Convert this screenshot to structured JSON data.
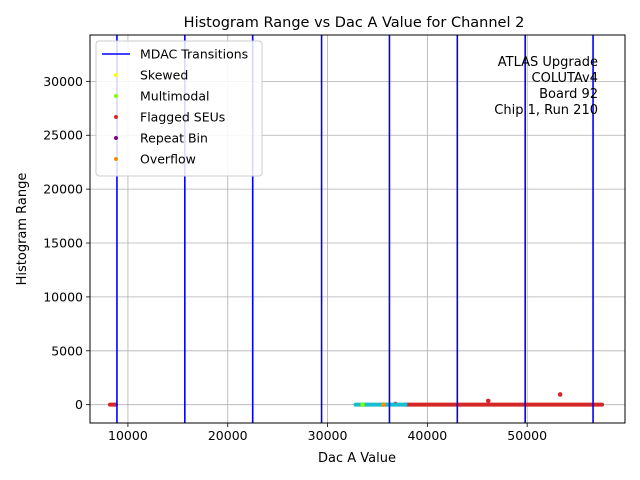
{
  "chart_data": {
    "type": "scatter",
    "title": "Histogram Range vs Dac A Value for Channel 2",
    "xlabel": "Dac A Value",
    "ylabel": "Histogram Range",
    "xlim": [
      6200,
      59800
    ],
    "ylim": [
      -1700,
      34300
    ],
    "xticks": [
      10000,
      20000,
      30000,
      40000,
      50000
    ],
    "yticks": [
      0,
      5000,
      10000,
      15000,
      20000,
      25000,
      30000
    ],
    "grid": true,
    "legend_position": "top-left",
    "annotation": [
      "ATLAS Upgrade",
      "COLUTAv4",
      "Board 92",
      "Chip 1, Run 210"
    ],
    "mdac_transitions": [
      8900,
      15700,
      22500,
      29400,
      36200,
      43000,
      49800,
      56600
    ],
    "legend": [
      {
        "label": "MDAC Transitions",
        "kind": "line",
        "color": "#0000ff"
      },
      {
        "label": "Skewed",
        "kind": "dot",
        "color": "#ffff00"
      },
      {
        "label": "Multimodal",
        "kind": "dot",
        "color": "#7fff00"
      },
      {
        "label": "Flagged SEUs",
        "kind": "dot",
        "color": "#d62728"
      },
      {
        "label": "Repeat Bin",
        "kind": "dot",
        "color": "#800080"
      },
      {
        "label": "Overflow",
        "kind": "dot",
        "color": "#ff8c00"
      }
    ],
    "series": [
      {
        "name": "Flagged SEUs",
        "color": "#d62728",
        "segments": [
          [
            8200,
            8800
          ],
          [
            37800,
            57500
          ]
        ],
        "value": 0,
        "points": [
          [
            46100,
            350
          ],
          [
            53300,
            950
          ],
          [
            36800,
            60
          ]
        ]
      },
      {
        "name": "",
        "color": "#17becf",
        "segments": [
          [
            32800,
            37800
          ]
        ],
        "value": 0,
        "points": []
      },
      {
        "name": "Overflow",
        "color": "#ff8c00",
        "segments": [],
        "value": 0,
        "points": [
          [
            35600,
            0
          ]
        ]
      },
      {
        "name": "Multimodal",
        "color": "#7fff00",
        "segments": [],
        "value": 0,
        "points": [
          [
            33500,
            0
          ]
        ]
      }
    ]
  }
}
